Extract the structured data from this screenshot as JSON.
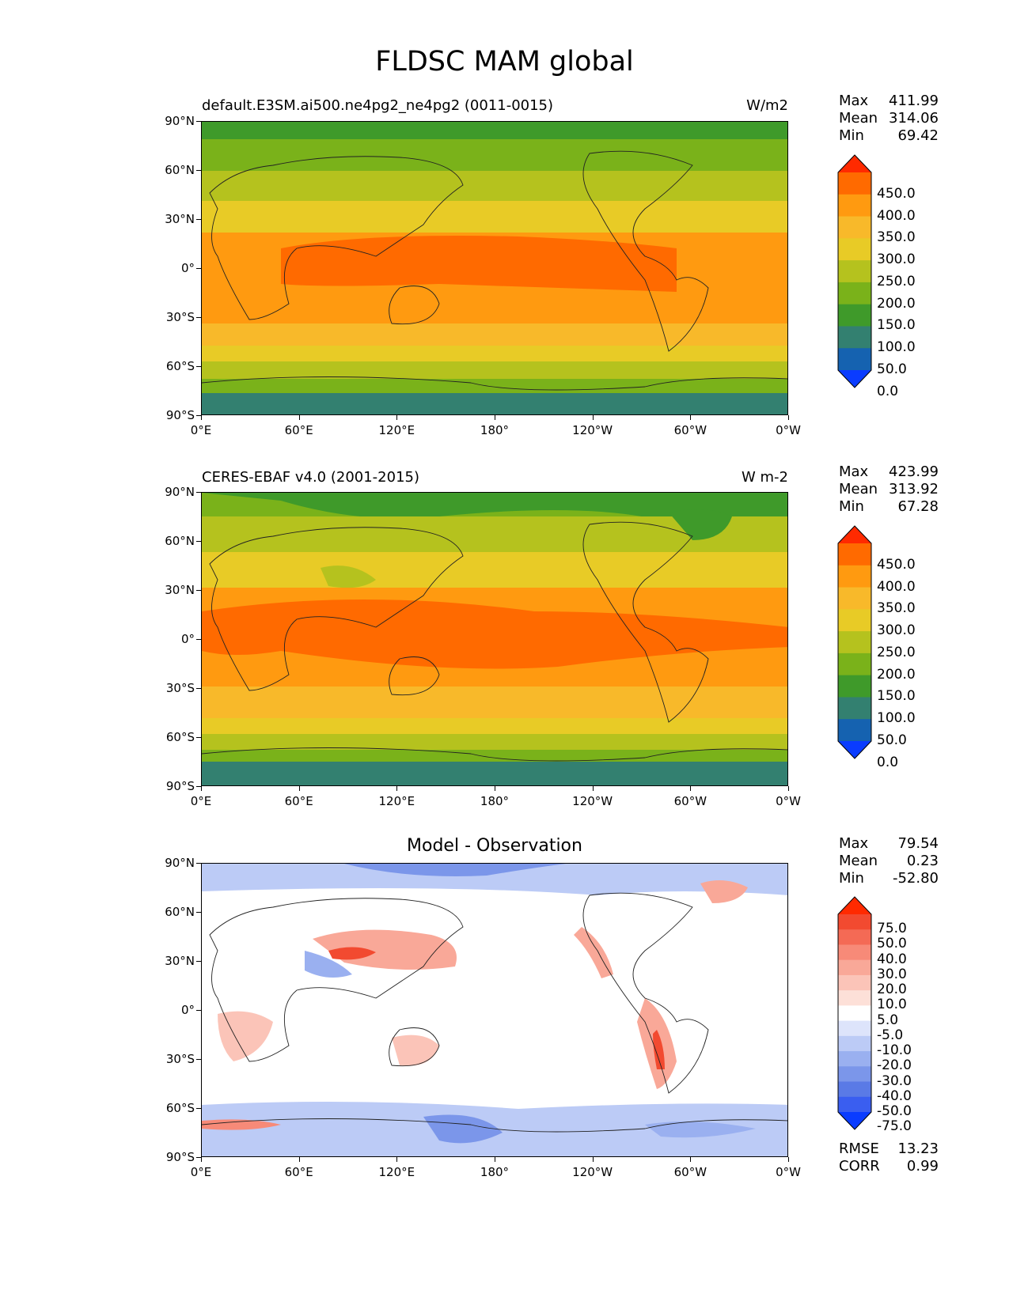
{
  "figure_title": "FLDSC MAM global",
  "lat_labels": [
    "90°N",
    "60°N",
    "30°N",
    "0°",
    "30°S",
    "60°S",
    "90°S"
  ],
  "lon_labels": [
    "0°E",
    "60°E",
    "120°E",
    "180°",
    "120°W",
    "60°W",
    "0°W"
  ],
  "panels": [
    {
      "title_left": "default.E3SM.ai500.ne4pg2_ne4pg2 (0011-0015)",
      "title_right": "W/m2",
      "stats": [
        {
          "label": "Max",
          "value": "411.99"
        },
        {
          "label": "Mean",
          "value": "314.06"
        },
        {
          "label": "Min",
          "value": "69.42"
        }
      ],
      "colorbar": {
        "labels": [
          "450.0",
          "400.0",
          "350.0",
          "300.0",
          "250.0",
          "200.0",
          "150.0",
          "100.0",
          "50.0",
          "0.0"
        ],
        "colors": [
          "#ff2a00",
          "#ff6a00",
          "#ff9a10",
          "#f8b92a",
          "#e8cb26",
          "#b5c21e",
          "#7ab21a",
          "#3f9a2a",
          "#338070",
          "#1562b0",
          "#0a3cff"
        ]
      }
    },
    {
      "title_left": "CERES-EBAF v4.0 (2001-2015)",
      "title_right": "W m-2",
      "stats": [
        {
          "label": "Max",
          "value": "423.99"
        },
        {
          "label": "Mean",
          "value": "313.92"
        },
        {
          "label": "Min",
          "value": "67.28"
        }
      ],
      "colorbar": {
        "labels": [
          "450.0",
          "400.0",
          "350.0",
          "300.0",
          "250.0",
          "200.0",
          "150.0",
          "100.0",
          "50.0",
          "0.0"
        ],
        "colors": [
          "#ff2a00",
          "#ff6a00",
          "#ff9a10",
          "#f8b92a",
          "#e8cb26",
          "#b5c21e",
          "#7ab21a",
          "#3f9a2a",
          "#338070",
          "#1562b0",
          "#0a3cff"
        ]
      }
    },
    {
      "title_center": "Model - Observation",
      "stats": [
        {
          "label": "Max",
          "value": "79.54"
        },
        {
          "label": "Mean",
          "value": "0.23"
        },
        {
          "label": "Min",
          "value": "-52.80"
        }
      ],
      "extra_stats": [
        {
          "label": "RMSE",
          "value": "13.23"
        },
        {
          "label": "CORR",
          "value": "0.99"
        }
      ],
      "colorbar": {
        "labels": [
          "75.0",
          "50.0",
          "40.0",
          "30.0",
          "20.0",
          "10.0",
          "5.0",
          "-5.0",
          "-10.0",
          "-20.0",
          "-30.0",
          "-40.0",
          "-50.0",
          "-75.0"
        ],
        "colors": [
          "#ff2a00",
          "#f24a30",
          "#f46a55",
          "#f78a78",
          "#f9a898",
          "#fbc4b8",
          "#fde0d8",
          "#ffffff",
          "#dde4fb",
          "#bccbf6",
          "#9ab0f0",
          "#7b96ea",
          "#5a7ae6",
          "#3a5ef0",
          "#0a3cff"
        ]
      }
    }
  ]
}
